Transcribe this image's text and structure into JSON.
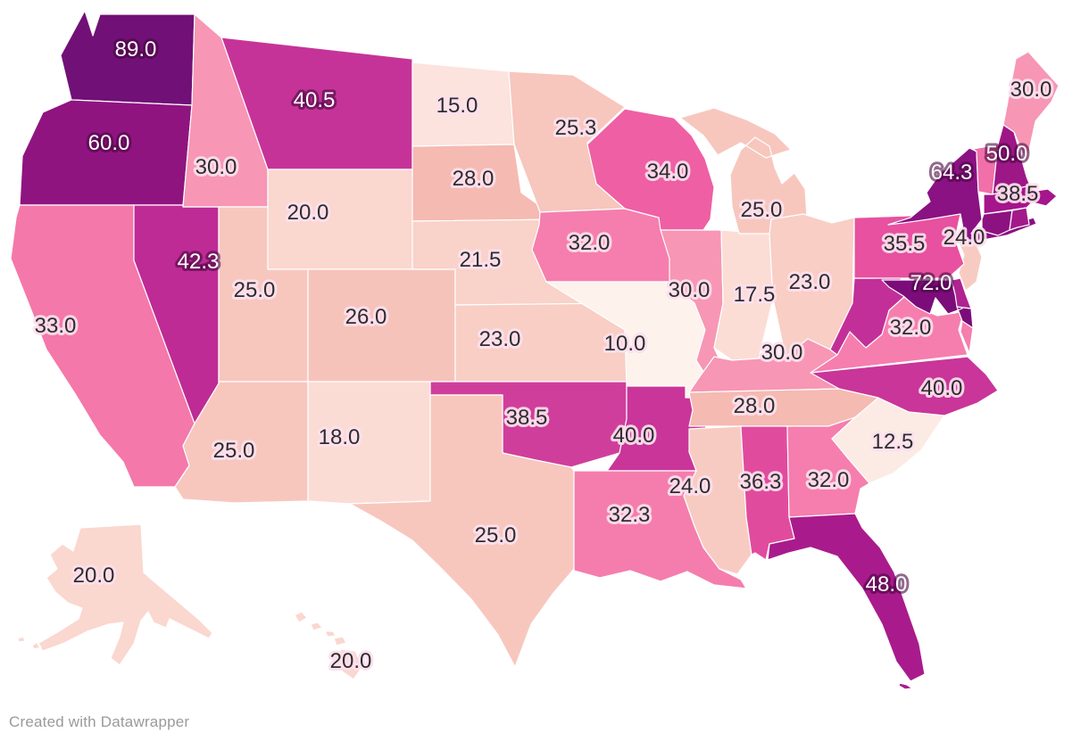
{
  "chart_data": {
    "type": "choropleth_map",
    "region": "United States (50 states, Alaska and Hawaii insets)",
    "title": "",
    "legend": "none visible",
    "value_labels_shown": true,
    "value_format": "one decimal place",
    "color_scale": {
      "type": "continuous",
      "description": "light pink (low) to dark purple (high), RdPu-style",
      "min_observed": 10.0,
      "max_observed": 89.0,
      "low_color": "#fdf2ec",
      "high_color": "#711076"
    },
    "states": [
      {
        "id": "WA",
        "name": "Washington",
        "value": 89.0,
        "label": "89.0",
        "fill": "#711076",
        "label_light": true
      },
      {
        "id": "OR",
        "name": "Oregon",
        "value": 60.0,
        "label": "60.0",
        "fill": "#8f1480",
        "label_light": true
      },
      {
        "id": "CA",
        "name": "California",
        "value": 33.0,
        "label": "33.0",
        "fill": "#f478aa",
        "label_light": false
      },
      {
        "id": "NV",
        "name": "Nevada",
        "value": 42.3,
        "label": "42.3",
        "fill": "#be2b95",
        "label_light": true
      },
      {
        "id": "ID",
        "name": "Idaho",
        "value": 30.0,
        "label": "30.0",
        "fill": "#f796b5",
        "label_light": false
      },
      {
        "id": "MT",
        "name": "Montana",
        "value": 40.5,
        "label": "40.5",
        "fill": "#c63398",
        "label_light": true
      },
      {
        "id": "WY",
        "name": "Wyoming",
        "value": 20.0,
        "label": "20.0",
        "fill": "#fad7cf",
        "label_light": false
      },
      {
        "id": "UT",
        "name": "Utah",
        "value": 25.0,
        "label": "25.0",
        "fill": "#f7c7be",
        "label_light": false
      },
      {
        "id": "AZ",
        "name": "Arizona",
        "value": 25.0,
        "label": "25.0",
        "fill": "#f7c7be",
        "label_light": false
      },
      {
        "id": "NM",
        "name": "New Mexico",
        "value": 18.0,
        "label": "18.0",
        "fill": "#fbdcd4",
        "label_light": false
      },
      {
        "id": "CO",
        "name": "Colorado",
        "value": 26.0,
        "label": "26.0",
        "fill": "#f6c3ba",
        "label_light": false
      },
      {
        "id": "ND",
        "name": "North Dakota",
        "value": 15.0,
        "label": "15.0",
        "fill": "#fce3dd",
        "label_light": false
      },
      {
        "id": "SD",
        "name": "South Dakota",
        "value": 28.0,
        "label": "28.0",
        "fill": "#f5bab2",
        "label_light": false
      },
      {
        "id": "NE",
        "name": "Nebraska",
        "value": 21.5,
        "label": "21.5",
        "fill": "#f9d2c9",
        "label_light": false
      },
      {
        "id": "KS",
        "name": "Kansas",
        "value": 23.0,
        "label": "23.0",
        "fill": "#f8cec5",
        "label_light": false
      },
      {
        "id": "OK",
        "name": "Oklahoma",
        "value": 38.5,
        "label": "38.5",
        "fill": "#d03e9c",
        "label_light": false
      },
      {
        "id": "TX",
        "name": "Texas",
        "value": 25.0,
        "label": "25.0",
        "fill": "#f7c7be",
        "label_light": false
      },
      {
        "id": "MN",
        "name": "Minnesota",
        "value": 25.3,
        "label": "25.3",
        "fill": "#f7c6bd",
        "label_light": false
      },
      {
        "id": "IA",
        "name": "Iowa",
        "value": 32.0,
        "label": "32.0",
        "fill": "#f57eae",
        "label_light": false
      },
      {
        "id": "MO",
        "name": "Missouri",
        "value": 10.0,
        "label": "10.0",
        "fill": "#fdf2ec",
        "label_light": false
      },
      {
        "id": "AR",
        "name": "Arkansas",
        "value": 40.0,
        "label": "40.0",
        "fill": "#c93599",
        "label_light": false
      },
      {
        "id": "LA",
        "name": "Louisiana",
        "value": 32.3,
        "label": "32.3",
        "fill": "#f57dad",
        "label_light": false
      },
      {
        "id": "WI",
        "name": "Wisconsin",
        "value": 34.0,
        "label": "34.0",
        "fill": "#ef5fa4",
        "label_light": false
      },
      {
        "id": "IL",
        "name": "Illinois",
        "value": 30.0,
        "label": "30.0",
        "fill": "#f796b5",
        "label_light": false
      },
      {
        "id": "IN",
        "name": "Indiana",
        "value": 17.5,
        "label": "17.5",
        "fill": "#fbddd5",
        "label_light": false
      },
      {
        "id": "MI",
        "name": "Michigan",
        "value": 25.0,
        "label": "25.0",
        "fill": "#f7c7be",
        "label_light": false
      },
      {
        "id": "OH",
        "name": "Ohio",
        "value": 23.0,
        "label": "23.0",
        "fill": "#f8cec5",
        "label_light": false
      },
      {
        "id": "KY",
        "name": "Kentucky",
        "value": 30.0,
        "label": "30.0",
        "fill": "#f796b5",
        "label_light": false
      },
      {
        "id": "TN",
        "name": "Tennessee",
        "value": 28.0,
        "label": "28.0",
        "fill": "#f5bab2",
        "label_light": false
      },
      {
        "id": "MS",
        "name": "Mississippi",
        "value": 24.0,
        "label": "24.0",
        "fill": "#f8cbc2",
        "label_light": false
      },
      {
        "id": "AL",
        "name": "Alabama",
        "value": 36.3,
        "label": "36.3",
        "fill": "#e14b9e",
        "label_light": false
      },
      {
        "id": "GA",
        "name": "Georgia",
        "value": 32.0,
        "label": "32.0",
        "fill": "#f57eae",
        "label_light": false
      },
      {
        "id": "FL",
        "name": "Florida",
        "value": 48.0,
        "label": "48.0",
        "fill": "#a91b8c",
        "label_light": true
      },
      {
        "id": "SC",
        "name": "South Carolina",
        "value": 12.5,
        "label": "12.5",
        "fill": "#fcebe5",
        "label_light": false
      },
      {
        "id": "NC",
        "name": "North Carolina",
        "value": 40.0,
        "label": "40.0",
        "fill": "#c93599",
        "label_light": false
      },
      {
        "id": "VA",
        "name": "Virginia",
        "value": 32.0,
        "label": "32.0",
        "fill": "#f57eae",
        "label_light": false
      },
      {
        "id": "WV",
        "name": "West Virginia",
        "value": null,
        "label": null,
        "fill": "#c32f98",
        "label_light": false
      },
      {
        "id": "MD",
        "name": "Maryland",
        "value": 72.0,
        "label": "72.0",
        "fill": "#7c0c7a",
        "label_light": true
      },
      {
        "id": "DE",
        "name": "Delaware",
        "value": null,
        "label": null,
        "fill": "#b02391",
        "label_light": false
      },
      {
        "id": "NJ",
        "name": "New Jersey",
        "value": 24.0,
        "label": "24.0",
        "fill": "#f8cbc2",
        "label_light": false
      },
      {
        "id": "PA",
        "name": "Pennsylvania",
        "value": 35.5,
        "label": "35.5",
        "fill": "#e7519f",
        "label_light": false
      },
      {
        "id": "NY",
        "name": "New York",
        "value": 64.3,
        "label": "64.3",
        "fill": "#8a1283",
        "label_light": true
      },
      {
        "id": "VT",
        "name": "Vermont",
        "value": null,
        "label": null,
        "fill": "#f170a9",
        "label_light": false
      },
      {
        "id": "NH",
        "name": "New Hampshire",
        "value": 50.0,
        "label": "50.0",
        "fill": "#9d1787",
        "label_light": true
      },
      {
        "id": "MA",
        "name": "Massachusetts",
        "value": 38.5,
        "label": "38.5",
        "fill": "#a5158b",
        "label_light": false
      },
      {
        "id": "CT",
        "name": "Connecticut",
        "value": null,
        "label": null,
        "fill": "#8c1282",
        "label_light": false
      },
      {
        "id": "RI",
        "name": "Rhode Island",
        "value": null,
        "label": null,
        "fill": "#a21a89",
        "label_light": false
      },
      {
        "id": "ME",
        "name": "Maine",
        "value": 30.0,
        "label": "30.0",
        "fill": "#f796b5",
        "label_light": false
      },
      {
        "id": "AK",
        "name": "Alaska",
        "value": 20.0,
        "label": "20.0",
        "fill": "#fad7cf",
        "label_light": false
      },
      {
        "id": "HI",
        "name": "Hawaii",
        "value": 20.0,
        "label": "20.0",
        "fill": "#fad7cf",
        "label_light": false
      }
    ]
  },
  "footer": {
    "credit": "Created with Datawrapper"
  }
}
